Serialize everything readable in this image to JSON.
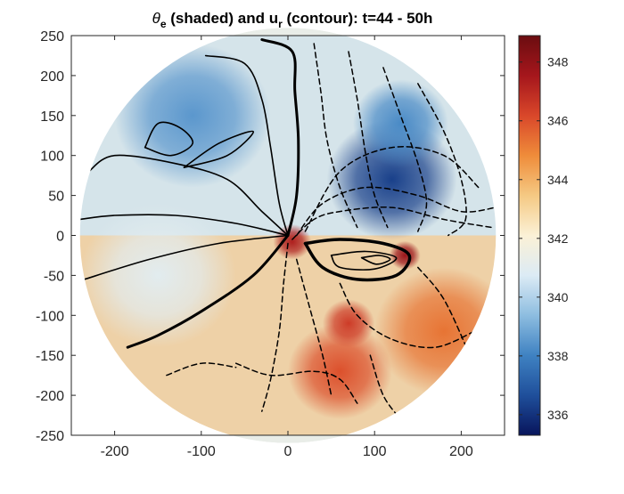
{
  "chart_data": {
    "type": "heatmap",
    "title": {
      "theta": "θ",
      "theta_sub": "e",
      "middle": " (shaded) and u",
      "u_sub": "r",
      "tail": " (contour): t=44 - 50h"
    },
    "xlabel": "",
    "ylabel": "",
    "xlim": [
      -250,
      250
    ],
    "ylim": [
      -250,
      250
    ],
    "x_ticks": [
      -200,
      -100,
      0,
      100,
      200
    ],
    "y_ticks": [
      250,
      200,
      150,
      100,
      50,
      0,
      -50,
      -100,
      -150,
      -200,
      -250
    ],
    "domain_radius": 240,
    "colorbar": {
      "range": [
        335.3,
        348.9
      ],
      "ticks": [
        336,
        338,
        340,
        342,
        344,
        346,
        348
      ],
      "colors": [
        "#08155c",
        "#1f4f9b",
        "#3f82c2",
        "#8dbde0",
        "#dcebf5",
        "#fbf1d6",
        "#f5c983",
        "#ef8c3a",
        "#d9472a",
        "#a5161c",
        "#6b0d10"
      ]
    },
    "shading_regions": [
      {
        "cx": -110,
        "cy": 150,
        "r": 90,
        "value": 338.5
      },
      {
        "cx": 120,
        "cy": 70,
        "r": 75,
        "value": 336.3
      },
      {
        "cx": 130,
        "cy": 140,
        "r": 55,
        "value": 338.2
      },
      {
        "cx": -150,
        "cy": -50,
        "r": 90,
        "value": 341.0
      },
      {
        "cx": 180,
        "cy": -120,
        "r": 80,
        "value": 345.3
      },
      {
        "cx": 60,
        "cy": -170,
        "r": 60,
        "value": 346.0
      },
      {
        "cx": 5,
        "cy": -8,
        "r": 22,
        "value": 347.3
      },
      {
        "cx": 135,
        "cy": -25,
        "r": 18,
        "value": 347.8
      },
      {
        "cx": 70,
        "cy": -110,
        "r": 30,
        "value": 346.5
      }
    ],
    "contours_positive": [
      {
        "width": 3,
        "points": [
          [
            0,
            0
          ],
          [
            10,
            50
          ],
          [
            12,
            120
          ],
          [
            8,
            180
          ],
          [
            5,
            230
          ],
          [
            -30,
            245
          ]
        ]
      },
      {
        "width": 1.6,
        "points": [
          [
            0,
            0
          ],
          [
            -10,
            40
          ],
          [
            -20,
            110
          ],
          [
            -30,
            170
          ],
          [
            -50,
            215
          ],
          [
            -95,
            225
          ]
        ]
      },
      {
        "width": 1.6,
        "points": [
          [
            0,
            0
          ],
          [
            -30,
            30
          ],
          [
            -70,
            70
          ],
          [
            -130,
            90
          ],
          [
            -200,
            100
          ],
          [
            -230,
            80
          ]
        ]
      },
      {
        "width": 1.6,
        "points": [
          [
            0,
            0
          ],
          [
            -60,
            15
          ],
          [
            -130,
            25
          ],
          [
            -200,
            25
          ],
          [
            -240,
            20
          ]
        ]
      },
      {
        "width": 1.6,
        "points": [
          [
            0,
            0
          ],
          [
            -80,
            -10
          ],
          [
            -160,
            -30
          ],
          [
            -235,
            -55
          ]
        ]
      },
      {
        "width": 3,
        "points": [
          [
            0,
            0
          ],
          [
            -40,
            -50
          ],
          [
            -100,
            -95
          ],
          [
            -150,
            -125
          ],
          [
            -185,
            -140
          ]
        ]
      },
      {
        "width": 3.5,
        "points": [
          [
            20,
            -10
          ],
          [
            60,
            -5
          ],
          [
            110,
            -10
          ],
          [
            140,
            -25
          ],
          [
            125,
            -50
          ],
          [
            80,
            -55
          ],
          [
            40,
            -40
          ],
          [
            20,
            -10
          ]
        ]
      },
      {
        "width": 1.6,
        "points": [
          [
            50,
            -25
          ],
          [
            90,
            -20
          ],
          [
            125,
            -28
          ],
          [
            100,
            -42
          ],
          [
            60,
            -40
          ],
          [
            50,
            -25
          ]
        ]
      },
      {
        "width": 1.6,
        "points": [
          [
            85,
            -28
          ],
          [
            105,
            -25
          ],
          [
            118,
            -30
          ],
          [
            102,
            -36
          ],
          [
            85,
            -28
          ]
        ]
      },
      {
        "width": 1.6,
        "points": [
          [
            -165,
            110
          ],
          [
            -150,
            140
          ],
          [
            -125,
            135
          ],
          [
            -110,
            115
          ],
          [
            -135,
            100
          ],
          [
            -165,
            110
          ]
        ]
      },
      {
        "width": 1.6,
        "points": [
          [
            -120,
            85
          ],
          [
            -80,
            115
          ],
          [
            -40,
            130
          ],
          [
            -70,
            100
          ],
          [
            -120,
            85
          ]
        ]
      }
    ],
    "contours_negative": [
      {
        "points": [
          [
            30,
            240
          ],
          [
            38,
            180
          ],
          [
            45,
            120
          ],
          [
            60,
            60
          ],
          [
            80,
            10
          ]
        ]
      },
      {
        "points": [
          [
            70,
            230
          ],
          [
            80,
            170
          ],
          [
            90,
            100
          ],
          [
            100,
            50
          ],
          [
            115,
            10
          ]
        ]
      },
      {
        "points": [
          [
            110,
            210
          ],
          [
            130,
            150
          ],
          [
            150,
            90
          ],
          [
            160,
            40
          ],
          [
            150,
            5
          ]
        ]
      },
      {
        "points": [
          [
            150,
            190
          ],
          [
            180,
            130
          ],
          [
            200,
            70
          ],
          [
            205,
            20
          ],
          [
            185,
            0
          ]
        ]
      },
      {
        "points": [
          [
            10,
            0
          ],
          [
            40,
            40
          ],
          [
            90,
            60
          ],
          [
            150,
            50
          ],
          [
            200,
            30
          ],
          [
            240,
            35
          ]
        ]
      },
      {
        "points": [
          [
            5,
            -5
          ],
          [
            30,
            20
          ],
          [
            60,
            30
          ],
          [
            120,
            35
          ],
          [
            180,
            20
          ],
          [
            235,
            10
          ]
        ]
      },
      {
        "points": [
          [
            20,
            5
          ],
          [
            60,
            80
          ],
          [
            120,
            110
          ],
          [
            180,
            100
          ],
          [
            220,
            60
          ]
        ]
      },
      {
        "points": [
          [
            0,
            -10
          ],
          [
            -5,
            -60
          ],
          [
            -10,
            -120
          ],
          [
            -20,
            -180
          ],
          [
            -30,
            -220
          ]
        ]
      },
      {
        "points": [
          [
            10,
            -30
          ],
          [
            25,
            -90
          ],
          [
            40,
            -150
          ],
          [
            50,
            -200
          ]
        ]
      },
      {
        "points": [
          [
            -60,
            -160
          ],
          [
            -20,
            -175
          ],
          [
            30,
            -170
          ],
          [
            60,
            -180
          ],
          [
            80,
            -210
          ]
        ]
      },
      {
        "points": [
          [
            60,
            -60
          ],
          [
            80,
            -100
          ],
          [
            120,
            -130
          ],
          [
            170,
            -140
          ],
          [
            215,
            -120
          ]
        ]
      },
      {
        "points": [
          [
            150,
            -40
          ],
          [
            180,
            -80
          ],
          [
            210,
            -150
          ]
        ]
      },
      {
        "points": [
          [
            95,
            -150
          ],
          [
            110,
            -200
          ],
          [
            130,
            -230
          ]
        ]
      },
      {
        "points": [
          [
            -140,
            -175
          ],
          [
            -100,
            -160
          ],
          [
            -60,
            -165
          ]
        ]
      }
    ]
  }
}
